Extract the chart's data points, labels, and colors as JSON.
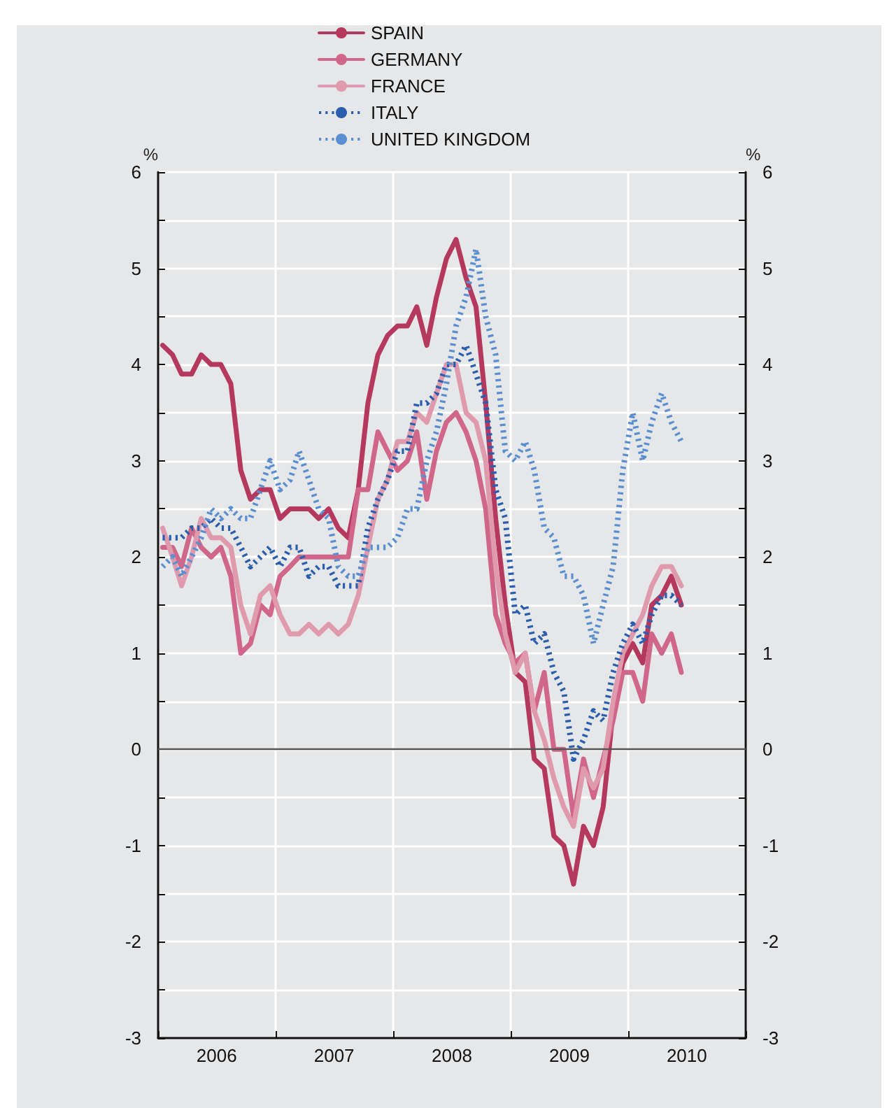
{
  "chart_data": {
    "type": "line",
    "ylabel": "%",
    "y2label": "%",
    "x": [
      "2006-01-15",
      "2006-02-15",
      "2006-03-15",
      "2006-04-15",
      "2006-05-15",
      "2006-06-15",
      "2006-07-15",
      "2006-08-15",
      "2006-09-15",
      "2006-10-15",
      "2006-11-15",
      "2006-12-15",
      "2007-01-15",
      "2007-02-15",
      "2007-03-15",
      "2007-04-15",
      "2007-05-15",
      "2007-06-15",
      "2007-07-15",
      "2007-08-15",
      "2007-09-15",
      "2007-10-15",
      "2007-11-15",
      "2007-12-15",
      "2008-01-15",
      "2008-02-15",
      "2008-03-15",
      "2008-04-15",
      "2008-05-15",
      "2008-06-15",
      "2008-07-15",
      "2008-08-15",
      "2008-09-15",
      "2008-10-15",
      "2008-11-15",
      "2008-12-15",
      "2009-01-15",
      "2009-02-15",
      "2009-03-15",
      "2009-04-15",
      "2009-05-15",
      "2009-06-15",
      "2009-07-15",
      "2009-08-15",
      "2009-09-15",
      "2009-10-15",
      "2009-11-15",
      "2009-12-15",
      "2010-01-15",
      "2010-02-15",
      "2010-03-15",
      "2010-04-15",
      "2010-05-15",
      "2010-06-15"
    ],
    "series": [
      {
        "name": "SPAIN",
        "color": "#b5385e",
        "line_style": "solid",
        "values": [
          4.2,
          4.1,
          3.9,
          3.9,
          4.1,
          4.0,
          4.0,
          3.8,
          2.9,
          2.6,
          2.7,
          2.7,
          2.4,
          2.5,
          2.5,
          2.5,
          2.4,
          2.5,
          2.3,
          2.2,
          2.7,
          3.6,
          4.1,
          4.3,
          4.4,
          4.4,
          4.6,
          4.2,
          4.7,
          5.1,
          5.3,
          4.9,
          4.6,
          3.6,
          2.4,
          1.5,
          0.8,
          0.7,
          -0.1,
          -0.2,
          -0.9,
          -1.0,
          -1.4,
          -0.8,
          -1.0,
          -0.6,
          0.4,
          0.9,
          1.1,
          0.9,
          1.5,
          1.6,
          1.8,
          1.5
        ]
      },
      {
        "name": "GERMANY",
        "color": "#d0678a",
        "line_style": "solid",
        "values": [
          2.1,
          2.1,
          1.9,
          2.3,
          2.1,
          2.0,
          2.1,
          1.8,
          1.0,
          1.1,
          1.5,
          1.4,
          1.8,
          1.9,
          2.0,
          2.0,
          2.0,
          2.0,
          2.0,
          2.0,
          2.7,
          2.7,
          3.3,
          3.1,
          2.9,
          3.0,
          3.3,
          2.6,
          3.1,
          3.4,
          3.5,
          3.3,
          3.0,
          2.5,
          1.4,
          1.1,
          0.9,
          1.0,
          0.4,
          0.8,
          0.0,
          0.0,
          -0.7,
          -0.1,
          -0.5,
          -0.1,
          0.3,
          0.8,
          0.8,
          0.5,
          1.2,
          1.0,
          1.2,
          0.8
        ]
      },
      {
        "name": "FRANCE",
        "color": "#e09aae",
        "line_style": "solid",
        "values": [
          2.3,
          2.0,
          1.7,
          2.0,
          2.4,
          2.2,
          2.2,
          2.1,
          1.5,
          1.2,
          1.6,
          1.7,
          1.4,
          1.2,
          1.2,
          1.3,
          1.2,
          1.3,
          1.2,
          1.3,
          1.6,
          2.1,
          2.6,
          2.8,
          3.2,
          3.2,
          3.5,
          3.4,
          3.7,
          4.0,
          4.0,
          3.5,
          3.4,
          3.0,
          1.9,
          1.2,
          0.8,
          1.0,
          0.4,
          0.1,
          -0.3,
          -0.6,
          -0.8,
          -0.2,
          -0.4,
          -0.2,
          0.5,
          1.0,
          1.2,
          1.4,
          1.7,
          1.9,
          1.9,
          1.7
        ]
      },
      {
        "name": "ITALY",
        "color": "#2b5fae",
        "line_style": "dotted",
        "values": [
          2.2,
          2.2,
          2.2,
          2.3,
          2.3,
          2.4,
          2.3,
          2.3,
          2.1,
          1.9,
          2.0,
          2.1,
          1.9,
          2.1,
          2.1,
          1.8,
          1.9,
          1.9,
          1.7,
          1.7,
          1.7,
          2.3,
          2.6,
          2.8,
          3.1,
          3.1,
          3.6,
          3.6,
          3.7,
          4.0,
          4.0,
          4.2,
          3.9,
          3.6,
          2.7,
          2.4,
          1.4,
          1.5,
          1.1,
          1.2,
          0.8,
          0.6,
          -0.1,
          0.1,
          0.4,
          0.3,
          0.8,
          1.1,
          1.3,
          1.1,
          1.4,
          1.6,
          1.6,
          1.5
        ]
      },
      {
        "name": "UNITED KINGDOM",
        "color": "#5b8fd0",
        "line_style": "dotted",
        "values": [
          1.9,
          2.0,
          1.8,
          2.0,
          2.2,
          2.5,
          2.4,
          2.5,
          2.4,
          2.4,
          2.7,
          3.0,
          2.7,
          2.8,
          3.1,
          2.8,
          2.5,
          2.4,
          1.9,
          1.8,
          1.8,
          2.1,
          2.1,
          2.1,
          2.2,
          2.5,
          2.5,
          3.0,
          3.3,
          3.8,
          4.4,
          4.7,
          5.2,
          4.5,
          4.1,
          3.1,
          3.0,
          3.2,
          2.9,
          2.3,
          2.2,
          1.8,
          1.8,
          1.6,
          1.1,
          1.5,
          1.9,
          2.9,
          3.5,
          3.0,
          3.4,
          3.7,
          3.4,
          3.2
        ]
      }
    ],
    "xlim": [
      "2006-01-01",
      "2011-01-01"
    ],
    "xticks": [
      {
        "value": "2006-01-01",
        "label": null
      },
      {
        "value": "2007-01-01",
        "label": null
      },
      {
        "value": "2008-01-01",
        "label": null
      },
      {
        "value": "2009-01-01",
        "label": null
      },
      {
        "value": "2010-01-01",
        "label": null
      },
      {
        "value": "2011-01-01",
        "label": null
      },
      {
        "value": "2006-07-02",
        "label": "2006"
      },
      {
        "value": "2007-07-02",
        "label": "2007"
      },
      {
        "value": "2008-07-02",
        "label": "2008"
      },
      {
        "value": "2009-07-02",
        "label": "2009"
      },
      {
        "value": "2010-07-02",
        "label": "2010"
      }
    ],
    "ylim": [
      -3,
      6
    ],
    "yticks": [
      -3,
      {
        "value": -2.5,
        "label": null
      },
      -2,
      {
        "value": -1.5,
        "label": null
      },
      -1,
      {
        "value": -0.5,
        "label": null
      },
      0,
      {
        "value": 0.5,
        "label": null
      },
      1,
      {
        "value": 1.5,
        "label": null
      },
      2,
      {
        "value": 2.5,
        "label": null
      },
      3,
      {
        "value": 3.5,
        "label": null
      },
      4,
      {
        "value": 4.5,
        "label": null
      },
      5,
      {
        "value": 5.5,
        "label": null
      },
      6
    ],
    "y2lim": [
      -3,
      6
    ],
    "y2ticks": [
      -3,
      {
        "value": -2.5,
        "label": null
      },
      -2,
      {
        "value": -1.5,
        "label": null
      },
      -1,
      {
        "value": -0.5,
        "label": null
      },
      0,
      {
        "value": 0.5,
        "label": null
      },
      1,
      {
        "value": 1.5,
        "label": null
      },
      2,
      {
        "value": 2.5,
        "label": null
      },
      3,
      {
        "value": 3.5,
        "label": null
      },
      4,
      {
        "value": 4.5,
        "label": null
      },
      5,
      {
        "value": 5.5,
        "label": null
      },
      6
    ],
    "ref_lines": [
      {
        "axis": "y",
        "value": 0,
        "color": "#555555"
      }
    ],
    "grid": true,
    "legend": "top",
    "marker": "none"
  }
}
